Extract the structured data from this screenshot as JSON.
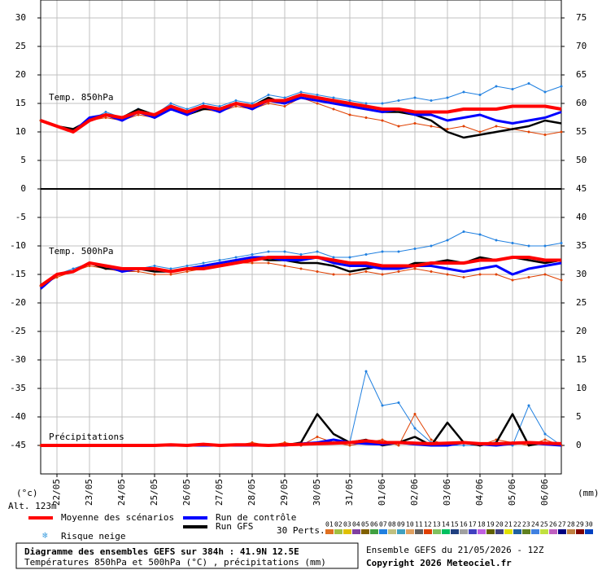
{
  "chart_data": {
    "type": "line",
    "xlim": [
      0,
      384
    ],
    "xticks": [
      {
        "value": 12,
        "label": "22/05"
      },
      {
        "value": 36,
        "label": "23/05"
      },
      {
        "value": 60,
        "label": "24/05"
      },
      {
        "value": 84,
        "label": "25/05"
      },
      {
        "value": 108,
        "label": "26/05"
      },
      {
        "value": 132,
        "label": "27/05"
      },
      {
        "value": 156,
        "label": "28/05"
      },
      {
        "value": 180,
        "label": "29/05"
      },
      {
        "value": 204,
        "label": "30/05"
      },
      {
        "value": 228,
        "label": "31/05"
      },
      {
        "value": 252,
        "label": "01/06"
      },
      {
        "value": 276,
        "label": "02/06"
      },
      {
        "value": 300,
        "label": "03/06"
      },
      {
        "value": 324,
        "label": "04/06"
      },
      {
        "value": 348,
        "label": "05/06"
      },
      {
        "value": 372,
        "label": "06/06"
      }
    ],
    "ylim": [
      -50,
      30
    ],
    "yticks": [
      30,
      25,
      20,
      15,
      10,
      5,
      0,
      -5,
      -10,
      -15,
      -20,
      -25,
      -30,
      -35,
      -40,
      -45
    ],
    "y2lim": [
      -5,
      75
    ],
    "y2ticks": [
      75,
      70,
      65,
      60,
      55,
      50,
      45,
      40,
      35,
      30,
      25,
      20,
      15,
      10,
      5,
      0
    ],
    "panel_divider": 0,
    "grid": true,
    "ylabel": "(°c)",
    "y2label": "(mm)",
    "altitude": "Alt. 123m",
    "x": [
      0,
      12,
      24,
      36,
      48,
      60,
      72,
      84,
      96,
      108,
      120,
      132,
      144,
      156,
      168,
      180,
      192,
      204,
      216,
      228,
      240,
      252,
      264,
      276,
      288,
      300,
      312,
      324,
      336,
      348,
      360,
      372,
      384
    ],
    "panels": [
      {
        "label": "Temp. 850hPa",
        "series": [
          {
            "name": "Moyenne des scénarios",
            "color": "#ff0000",
            "values": [
              12,
              11,
              10,
              12,
              13,
              12.5,
              13.5,
              13,
              14.5,
              13.5,
              14.5,
              14,
              15,
              14.5,
              15.5,
              15.5,
              16.5,
              16,
              15.5,
              15,
              14.5,
              14,
              14,
              13.5,
              13.5,
              13.5,
              14,
              14,
              14,
              14.5,
              14.5,
              14.5,
              14
            ]
          },
          {
            "name": "Run de contrôle",
            "color": "#0000ff",
            "values": [
              12,
              11,
              10,
              12.5,
              13,
              12,
              13.5,
              12.5,
              14,
              13,
              14.5,
              13.5,
              15,
              14,
              15.5,
              15,
              16,
              15.5,
              15,
              14.5,
              14,
              13.5,
              14,
              13,
              13,
              12,
              12.5,
              13,
              12,
              11.5,
              12,
              12.5,
              13.5
            ]
          },
          {
            "name": "Run GFS",
            "color": "#000000",
            "values": [
              12,
              11,
              10.5,
              12,
              13,
              12.5,
              14,
              13,
              14.5,
              13,
              14,
              14,
              15,
              14.5,
              16,
              15,
              16.5,
              16,
              15.5,
              14.5,
              14,
              13.5,
              13.5,
              13,
              12,
              10,
              9,
              9.5,
              10,
              10.5,
              11,
              12,
              11.5
            ]
          },
          {
            "name": "07",
            "color": "#2080e0",
            "values": [
              12,
              11,
              10,
              12,
              13.5,
              12.5,
              14,
              13,
              15,
              14,
              15,
              14.5,
              15.5,
              15,
              16.5,
              16,
              17,
              16.5,
              16,
              15.5,
              15,
              15,
              15.5,
              16,
              15.5,
              16,
              17,
              16.5,
              18,
              17.5,
              18.5,
              17,
              18
            ]
          },
          {
            "name": "12",
            "color": "#e04000",
            "values": [
              12,
              11,
              10,
              12,
              12.5,
              12,
              13,
              12.5,
              14,
              13,
              14,
              13.5,
              14.5,
              14,
              15,
              14.5,
              16,
              15,
              14,
              13,
              12.5,
              12,
              11,
              11.5,
              11,
              10.5,
              11,
              10,
              11,
              10.5,
              10,
              9.5,
              10
            ]
          }
        ]
      },
      {
        "label": "Temp. 500hPa",
        "series": [
          {
            "name": "Moyenne des scénarios",
            "color": "#ff0000",
            "values": [
              -17,
              -15,
              -14.5,
              -13,
              -13.5,
              -14,
              -14,
              -14,
              -14.5,
              -14,
              -14,
              -13.5,
              -13,
              -12.5,
              -12,
              -12,
              -12,
              -12,
              -12.5,
              -13,
              -13,
              -13.5,
              -13.5,
              -13.5,
              -13,
              -13,
              -13,
              -12.5,
              -12.5,
              -12,
              -12,
              -12.5,
              -12.5
            ]
          },
          {
            "name": "Run de contrôle",
            "color": "#0000ff",
            "values": [
              -17.5,
              -15,
              -14.5,
              -13,
              -13.5,
              -14.5,
              -14,
              -14,
              -14.5,
              -14,
              -13.5,
              -13,
              -12.5,
              -12,
              -12,
              -12.5,
              -12.5,
              -12,
              -13,
              -13.5,
              -13.5,
              -14,
              -14,
              -13.5,
              -13.5,
              -14,
              -14.5,
              -14,
              -13.5,
              -15,
              -14,
              -13.5,
              -13
            ]
          },
          {
            "name": "Run GFS",
            "color": "#000000",
            "values": [
              -17.5,
              -15,
              -14.5,
              -13,
              -14,
              -14,
              -14,
              -14.5,
              -14.5,
              -14,
              -13.5,
              -13,
              -12.5,
              -12,
              -12.5,
              -12.5,
              -13,
              -13,
              -13.5,
              -14.5,
              -14,
              -13.5,
              -14,
              -13,
              -13,
              -12.5,
              -13,
              -12,
              -12.5,
              -12,
              -12.5,
              -13,
              -12.5
            ]
          },
          {
            "name": "07",
            "color": "#2080e0",
            "values": [
              -17,
              -15,
              -14,
              -13,
              -13.5,
              -14,
              -14,
              -13.5,
              -14,
              -13.5,
              -13,
              -12.5,
              -12,
              -11.5,
              -11,
              -11,
              -11.5,
              -11,
              -12,
              -12,
              -11.5,
              -11,
              -11,
              -10.5,
              -10,
              -9,
              -7.5,
              -8,
              -9,
              -9.5,
              -10,
              -10,
              -9.5
            ]
          },
          {
            "name": "12",
            "color": "#e04000",
            "values": [
              -17,
              -15.5,
              -14.5,
              -13.5,
              -14,
              -14.5,
              -14.5,
              -15,
              -15,
              -14.5,
              -14,
              -13.5,
              -13,
              -13,
              -13,
              -13.5,
              -14,
              -14.5,
              -15,
              -15,
              -14.5,
              -15,
              -14.5,
              -14,
              -14.5,
              -15,
              -15.5,
              -15,
              -15,
              -16,
              -15.5,
              -15,
              -16
            ]
          }
        ]
      },
      {
        "label": "Précipitations",
        "series": [
          {
            "name": "Moyenne des scénarios",
            "color": "#ff0000",
            "axis": "y2",
            "values": [
              0,
              0,
              0,
              0,
              0,
              0,
              0,
              0,
              0.1,
              0,
              0.2,
              0,
              0.1,
              0.1,
              0,
              0.1,
              0.2,
              0.3,
              0.4,
              0.5,
              0.8,
              0.5,
              0.5,
              0.4,
              0.3,
              0.4,
              0.5,
              0.3,
              0.3,
              0.4,
              0.5,
              0.4,
              0.3
            ]
          },
          {
            "name": "Run de contrôle",
            "color": "#0000ff",
            "axis": "y2",
            "values": [
              0,
              0,
              0,
              0,
              0,
              0,
              0,
              0,
              0,
              0,
              0,
              0,
              0,
              0,
              0,
              0,
              0.3,
              0.5,
              1,
              0.5,
              0.3,
              0.2,
              0.5,
              0.2,
              0,
              0,
              0.5,
              0.2,
              0,
              0.3,
              0.5,
              0.2,
              0
            ]
          },
          {
            "name": "Run GFS",
            "color": "#000000",
            "axis": "y2",
            "values": [
              0,
              0,
              0,
              0,
              0,
              0,
              0,
              0,
              0,
              0,
              0,
              0,
              0,
              0,
              0,
              0,
              0.5,
              5.5,
              2,
              0.5,
              1,
              0,
              0.5,
              1.5,
              0,
              4,
              0.5,
              0,
              0.5,
              5.5,
              0,
              0.5,
              0
            ]
          },
          {
            "name": "07",
            "color": "#2080e0",
            "axis": "y2",
            "values": [
              0,
              0,
              0,
              0,
              0,
              0,
              0,
              0,
              0,
              0,
              0,
              0,
              0,
              0,
              0,
              0,
              0,
              0.5,
              1,
              0.5,
              13,
              7,
              7.5,
              3,
              0.5,
              0,
              0,
              0,
              0.5,
              0,
              7,
              2,
              0
            ]
          },
          {
            "name": "12",
            "color": "#e04000",
            "axis": "y2",
            "values": [
              0,
              0,
              0,
              0,
              0,
              0,
              0,
              0,
              0,
              0,
              0,
              0,
              0,
              0.5,
              0,
              0.5,
              0,
              1.5,
              0.5,
              0,
              0.5,
              1,
              0,
              5.5,
              1,
              0,
              0.5,
              0,
              1,
              0.5,
              0,
              1,
              0
            ]
          }
        ]
      }
    ],
    "snow_risk": "Risque neige",
    "perturbations": {
      "label": "30 Perts.",
      "names": [
        "01",
        "02",
        "03",
        "04",
        "05",
        "06",
        "07",
        "08",
        "09",
        "10",
        "11",
        "12",
        "13",
        "14",
        "15",
        "16",
        "17",
        "18",
        "19",
        "20",
        "21",
        "22",
        "23",
        "24",
        "25",
        "26",
        "27",
        "28",
        "29",
        "30"
      ],
      "colors": [
        "#e07020",
        "#a0c040",
        "#e0c000",
        "#8040a0",
        "#806000",
        "#40a040",
        "#2080e0",
        "#c0c080",
        "#40a0c0",
        "#e0a060",
        "#606060",
        "#e04000",
        "#80c060",
        "#00c060",
        "#204080",
        "#a0a0a0",
        "#4040c0",
        "#c060e0",
        "#606000",
        "#404080",
        "#e0e000",
        "#2060a0",
        "#608020",
        "#4080e0",
        "#c0e040",
        "#c060c0",
        "#000080",
        "#c08040",
        "#800000",
        "#0040c0"
      ]
    },
    "title": "Diagramme des ensembles GEFS sur 384h : 41.9N 12.5E",
    "subtitle": "Températures 850hPa et 500hPa (°C) , précipitations (mm)",
    "run_info": "Ensemble GEFS du 21/05/2026 - 12Z",
    "copyright": "Copyright 2026 Meteociel.fr"
  }
}
